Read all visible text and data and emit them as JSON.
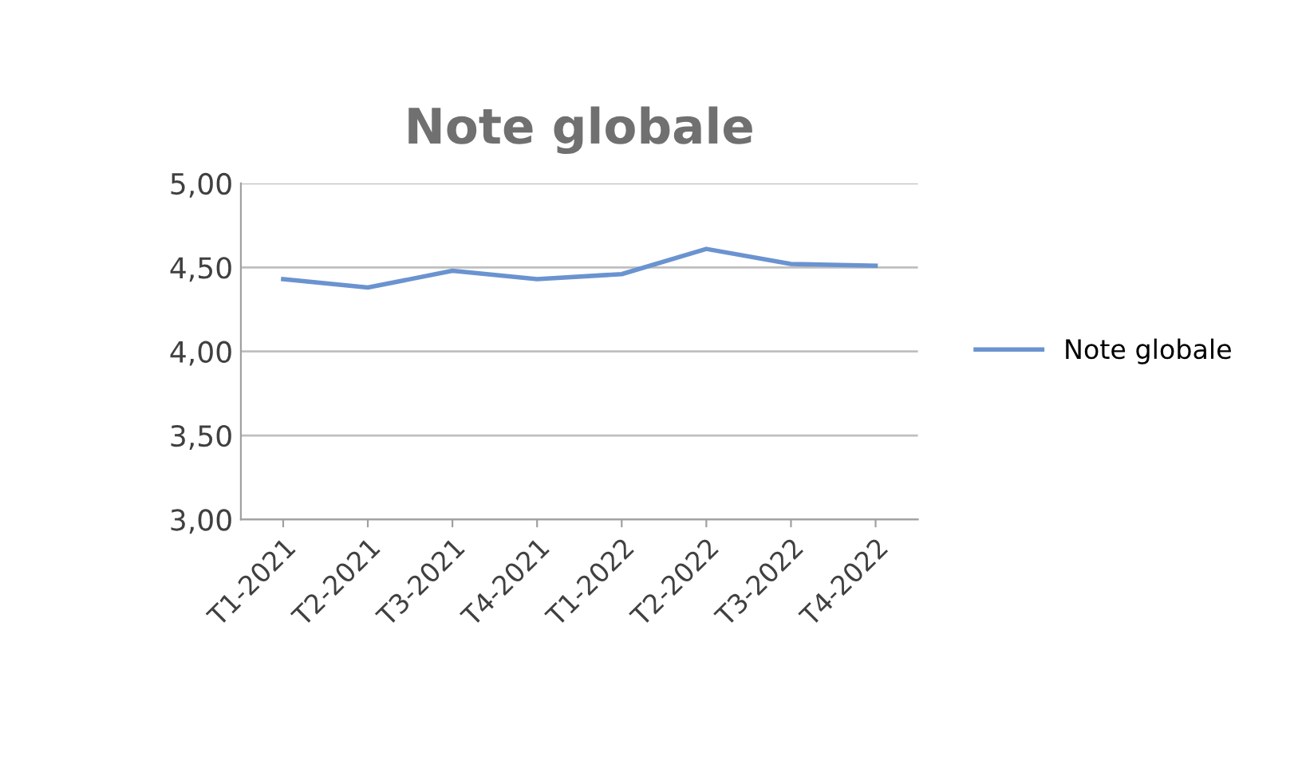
{
  "chart_data": {
    "type": "line",
    "title": "Note globale",
    "categories": [
      "T1-2021",
      "T2-2021",
      "T3-2021",
      "T4-2021",
      "T1-2022",
      "T2-2022",
      "T3-2022",
      "T4-2022"
    ],
    "series": [
      {
        "name": "Note globale",
        "color": "#6a93d0",
        "values": [
          4.43,
          4.38,
          4.48,
          4.43,
          4.46,
          4.61,
          4.52,
          4.51
        ]
      }
    ],
    "ylim": [
      3,
      5
    ],
    "yticks": [
      {
        "value": 3,
        "label": "3,00"
      },
      {
        "value": 3.5,
        "label": "3,50"
      },
      {
        "value": 4,
        "label": "4,00"
      },
      {
        "value": 4.5,
        "label": "4,50"
      },
      {
        "value": 5,
        "label": "5,00"
      }
    ],
    "grid": "y",
    "legend": "right",
    "line_style": "solid",
    "marker": "none"
  }
}
